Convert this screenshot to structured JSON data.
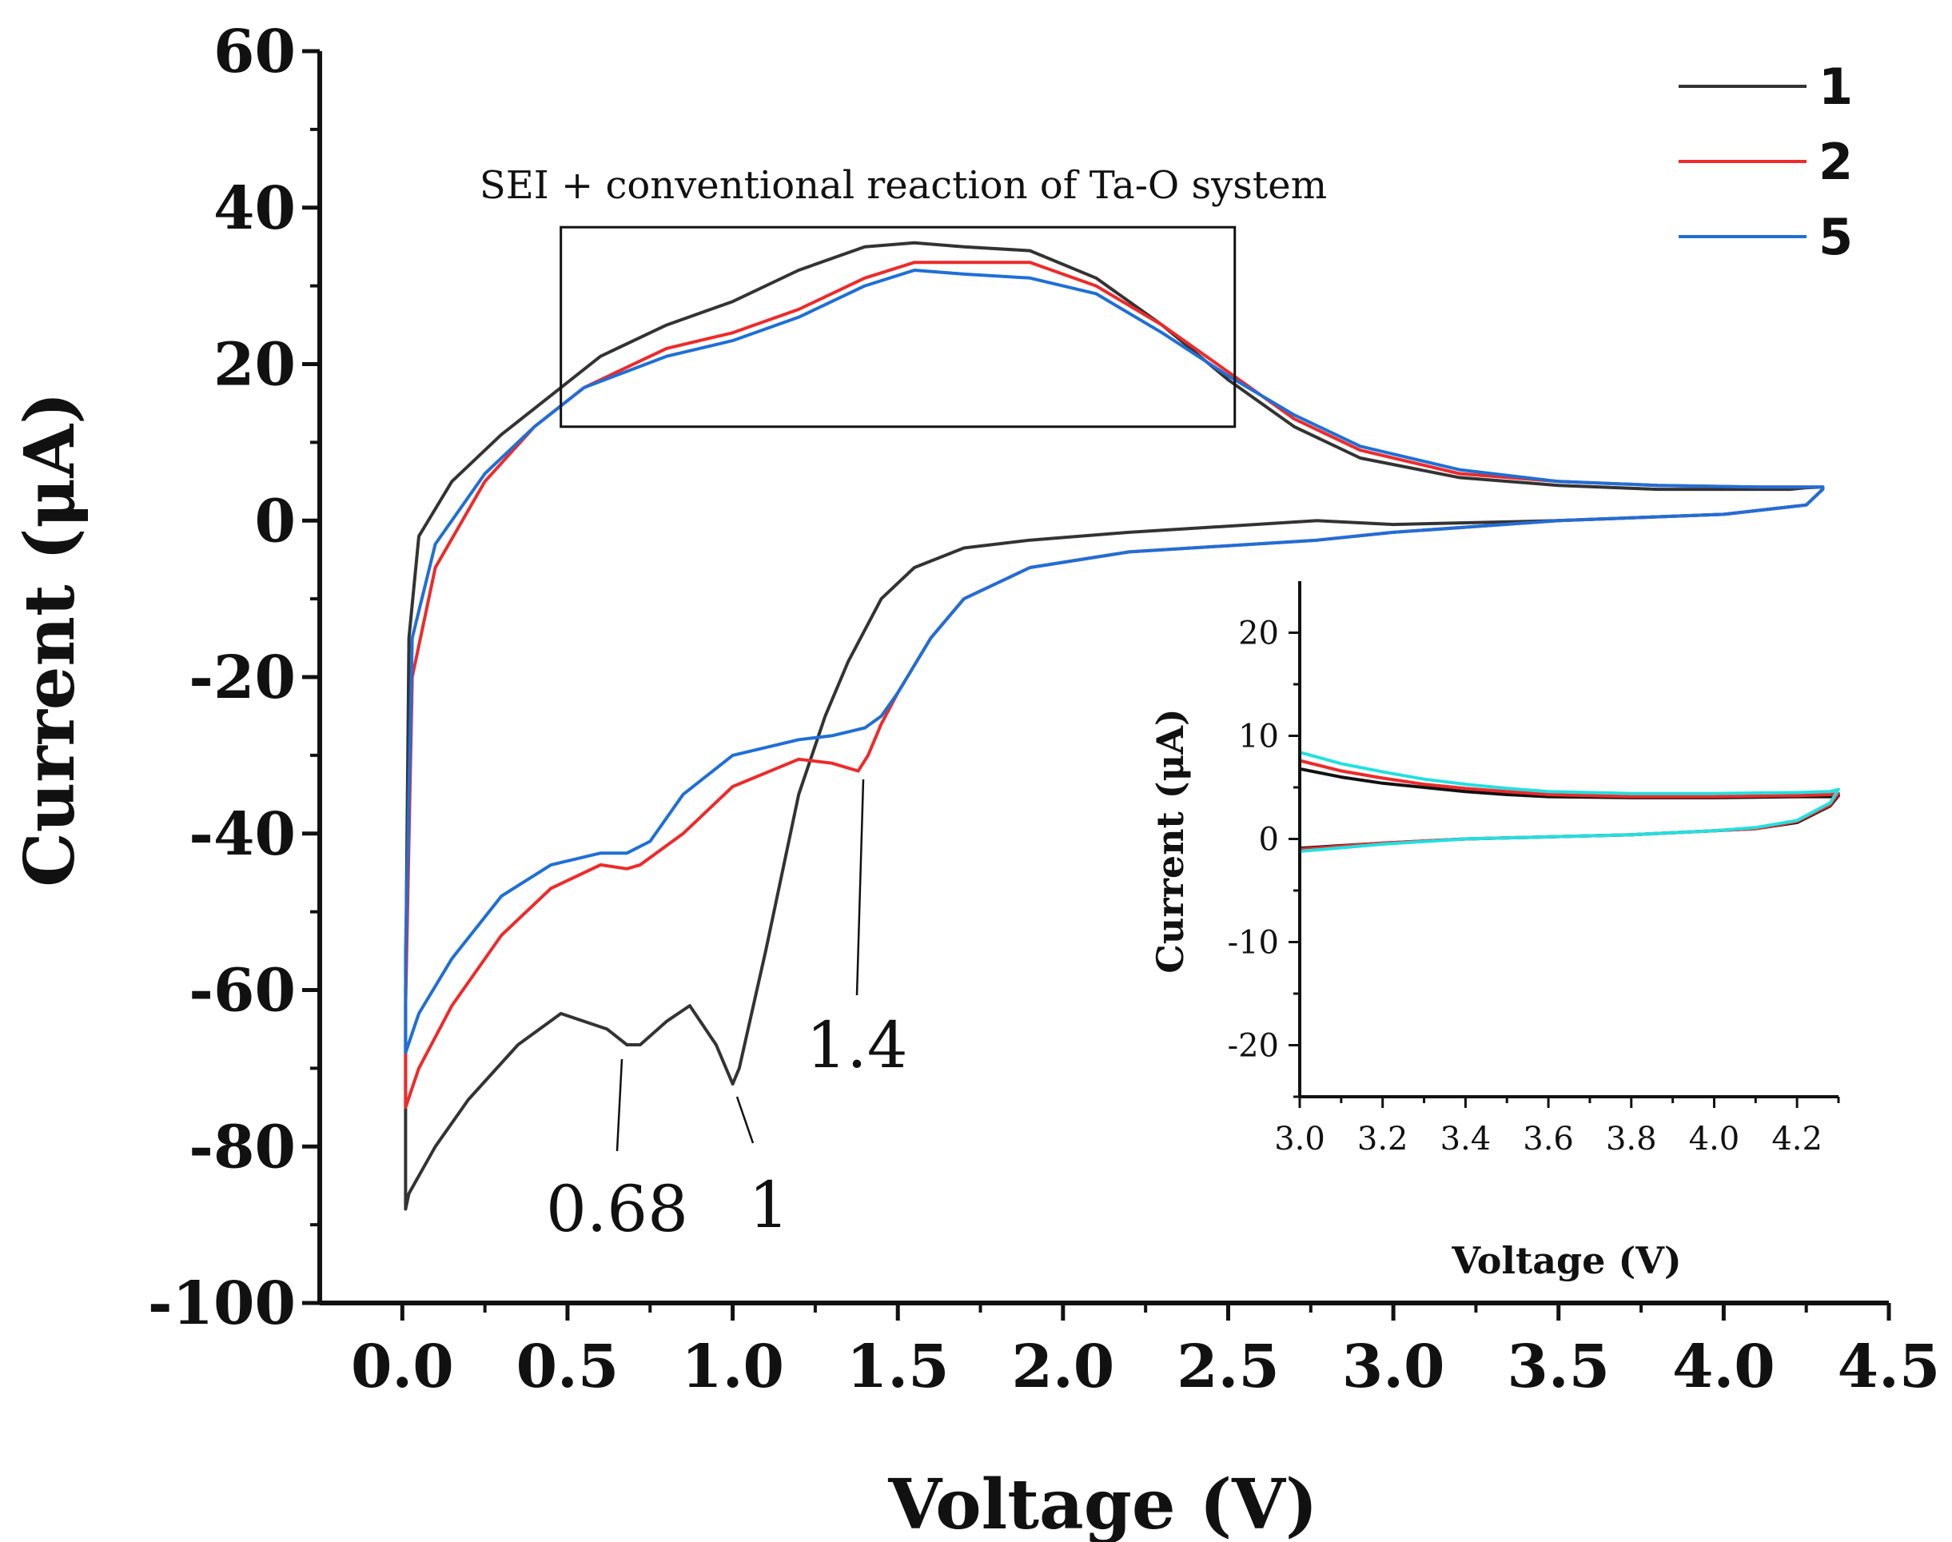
{
  "chart_data": [
    {
      "type": "line",
      "xlabel": "Voltage (V)",
      "ylabel": "Current (μA)",
      "xlim": [
        -0.25,
        4.5
      ],
      "ylim": [
        -100,
        60
      ],
      "xticks": [
        "0.0",
        "0.5",
        "1.0",
        "1.5",
        "2.0",
        "2.5",
        "3.0",
        "3.5",
        "4.0",
        "4.5"
      ],
      "yticks": [
        "60",
        "40",
        "20",
        "0",
        "-20",
        "-40",
        "-60",
        "-80",
        "-100"
      ],
      "legend_position": "top-right",
      "series": [
        {
          "name": "1",
          "color": "#333333",
          "x": [
            2.77,
            2.2,
            1.9,
            1.7,
            1.55,
            1.45,
            1.35,
            1.28,
            1.2,
            1.1,
            1.02,
            1.0,
            0.95,
            0.87,
            0.8,
            0.72,
            0.68,
            0.62,
            0.48,
            0.35,
            0.2,
            0.1,
            0.02,
            0.01,
            0.01,
            0.02,
            0.05,
            0.15,
            0.3,
            0.45,
            0.6,
            0.8,
            1.0,
            1.2,
            1.4,
            1.55,
            1.7,
            1.9,
            2.1,
            2.3,
            2.5,
            2.7,
            2.9,
            3.2,
            3.5,
            3.8,
            4.1,
            4.2,
            4.25,
            4.3,
            4.3,
            4.25,
            4.0,
            3.5,
            3.0,
            2.77
          ],
          "y": [
            0,
            -1.5,
            -2.5,
            -3.5,
            -6,
            -10,
            -18,
            -25,
            -35,
            -55,
            -70,
            -72,
            -67,
            -62,
            -64,
            -67,
            -67,
            -65,
            -63,
            -67,
            -74,
            -80,
            -86,
            -88,
            -60,
            -15,
            -2,
            5,
            11,
            16,
            21,
            25,
            28,
            32,
            35,
            35.5,
            35,
            34.5,
            31,
            25,
            18,
            12,
            8,
            5.5,
            4.5,
            4,
            4,
            4,
            4.2,
            4.3,
            4,
            2,
            0.8,
            0,
            -0.5,
            0
          ]
        },
        {
          "name": "2",
          "color": "#ee2a2a",
          "x": [
            2.77,
            2.2,
            1.9,
            1.7,
            1.6,
            1.5,
            1.45,
            1.41,
            1.38,
            1.3,
            1.2,
            1.0,
            0.85,
            0.72,
            0.68,
            0.6,
            0.45,
            0.3,
            0.15,
            0.05,
            0.01,
            0.01,
            0.03,
            0.1,
            0.25,
            0.4,
            0.55,
            0.8,
            1.0,
            1.2,
            1.4,
            1.55,
            1.7,
            1.9,
            2.1,
            2.3,
            2.5,
            2.7,
            2.9,
            3.2,
            3.5,
            3.8,
            4.1,
            4.2,
            4.25,
            4.3,
            4.3,
            4.25,
            4.0,
            3.5,
            3.0,
            2.77
          ],
          "y": [
            -2.5,
            -4,
            -6,
            -10,
            -15,
            -22,
            -26,
            -30,
            -32,
            -31,
            -30.5,
            -34,
            -40,
            -44,
            -44.5,
            -44,
            -47,
            -53,
            -62,
            -70,
            -75,
            -62,
            -20,
            -6,
            5,
            12,
            17,
            22,
            24,
            27,
            31,
            33,
            33,
            33,
            30,
            25,
            19,
            13,
            9,
            6,
            5,
            4.5,
            4.3,
            4.3,
            4.3,
            4.3,
            4,
            2,
            0.8,
            0,
            -1.5,
            -2.5
          ]
        },
        {
          "name": "5",
          "color": "#1f6fd6",
          "x": [
            2.77,
            2.2,
            1.9,
            1.7,
            1.6,
            1.5,
            1.45,
            1.4,
            1.3,
            1.2,
            1.0,
            0.85,
            0.75,
            0.68,
            0.6,
            0.45,
            0.3,
            0.15,
            0.05,
            0.01,
            0.01,
            0.03,
            0.1,
            0.25,
            0.4,
            0.55,
            0.8,
            1.0,
            1.2,
            1.4,
            1.55,
            1.7,
            1.9,
            2.1,
            2.3,
            2.5,
            2.7,
            2.9,
            3.2,
            3.5,
            3.8,
            4.1,
            4.2,
            4.25,
            4.3,
            4.3,
            4.25,
            4.0,
            3.5,
            3.0,
            2.77
          ],
          "y": [
            -2.5,
            -4,
            -6,
            -10,
            -15,
            -22,
            -25,
            -26.5,
            -27.5,
            -28,
            -30,
            -35,
            -41,
            -42.5,
            -42.5,
            -44,
            -48,
            -56,
            -63,
            -68,
            -55,
            -15,
            -3,
            6,
            12,
            17,
            21,
            23,
            26,
            30,
            32,
            31.5,
            31,
            29,
            24,
            18.5,
            13.5,
            9.5,
            6.5,
            5,
            4.5,
            4.3,
            4.3,
            4.3,
            4.3,
            4,
            2,
            0.8,
            0,
            -1.5,
            -2.5
          ]
        }
      ],
      "annotations": [
        "0.68",
        "1",
        "1.4"
      ],
      "box_label": "SEI + conventional reaction of Ta-O system",
      "box": {
        "x": [
          0.48,
          2.52
        ],
        "y": [
          12,
          37.5
        ]
      }
    },
    {
      "type": "line",
      "xlabel": "Voltage (V)",
      "ylabel": "Current (μA)",
      "xlim": [
        3.0,
        4.3
      ],
      "ylim": [
        -25,
        25
      ],
      "xticks": [
        "3.0",
        "3.2",
        "3.4",
        "3.6",
        "3.8",
        "4.0",
        "4.2"
      ],
      "yticks": [
        "20",
        "10",
        "0",
        "-10",
        "-20"
      ],
      "series": [
        {
          "color": "#111111",
          "x": [
            3.0,
            3.1,
            3.2,
            3.3,
            3.4,
            3.5,
            3.6,
            3.8,
            4.0,
            4.2,
            4.28,
            4.3,
            4.28,
            4.2,
            4.1,
            4.0,
            3.8,
            3.6,
            3.4,
            3.2,
            3.0
          ],
          "y": [
            6.8,
            6.0,
            5.4,
            5.0,
            4.6,
            4.3,
            4.1,
            4.0,
            4.0,
            4.1,
            4.1,
            4.2,
            3.2,
            1.6,
            1.0,
            0.8,
            0.4,
            0.2,
            0.0,
            -0.4,
            -0.9
          ]
        },
        {
          "color": "#ee2a2a",
          "x": [
            3.0,
            3.1,
            3.2,
            3.3,
            3.4,
            3.5,
            3.6,
            3.8,
            4.0,
            4.2,
            4.28,
            4.3,
            4.28,
            4.2,
            4.1,
            4.0,
            3.8,
            3.6,
            3.4,
            3.2,
            3.0
          ],
          "y": [
            7.6,
            6.6,
            5.9,
            5.3,
            4.9,
            4.6,
            4.3,
            4.1,
            4.1,
            4.2,
            4.3,
            4.4,
            3.3,
            1.7,
            1.0,
            0.8,
            0.4,
            0.2,
            0.0,
            -0.4,
            -1.0
          ]
        },
        {
          "color": "#22e0e0",
          "x": [
            3.0,
            3.1,
            3.2,
            3.3,
            3.4,
            3.5,
            3.6,
            3.8,
            4.0,
            4.2,
            4.28,
            4.3,
            4.28,
            4.2,
            4.1,
            4.0,
            3.8,
            3.6,
            3.4,
            3.2,
            3.0
          ],
          "y": [
            8.4,
            7.3,
            6.5,
            5.8,
            5.3,
            4.9,
            4.6,
            4.4,
            4.4,
            4.5,
            4.6,
            4.8,
            3.5,
            1.8,
            1.1,
            0.8,
            0.4,
            0.2,
            0.0,
            -0.5,
            -1.2
          ]
        }
      ]
    }
  ]
}
